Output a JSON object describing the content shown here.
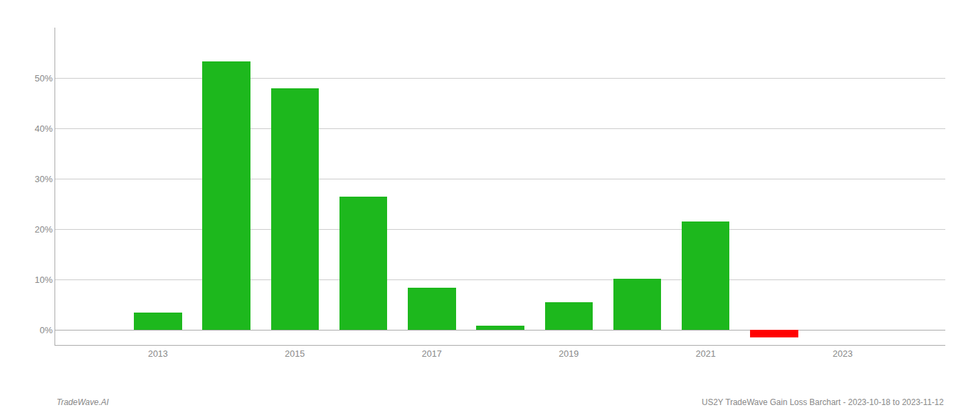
{
  "chart_data": {
    "type": "bar",
    "x": [
      2013,
      2014,
      2015,
      2016,
      2017,
      2018,
      2019,
      2020,
      2021,
      2022
    ],
    "values": [
      0.035,
      0.533,
      0.48,
      0.265,
      0.084,
      0.008,
      0.055,
      0.101,
      0.215,
      -0.015
    ],
    "colors": [
      "#1db81d",
      "#1db81d",
      "#1db81d",
      "#1db81d",
      "#1db81d",
      "#1db81d",
      "#1db81d",
      "#1db81d",
      "#1db81d",
      "#ff0000"
    ],
    "xlim": [
      2011.5,
      2024.5
    ],
    "xticks": [
      2013,
      2015,
      2017,
      2019,
      2021,
      2023
    ],
    "ylim": [
      -0.03,
      0.6
    ],
    "yticks": [
      {
        "value": 0.0,
        "label": "0%"
      },
      {
        "value": 0.1,
        "label": "10%"
      },
      {
        "value": 0.2,
        "label": "20%"
      },
      {
        "value": 0.3,
        "label": "30%"
      },
      {
        "value": 0.4,
        "label": "40%"
      },
      {
        "value": 0.5,
        "label": "50%"
      }
    ],
    "grid": true,
    "annotations": [
      "TradeWave.AI",
      "US2Y TradeWave Gain Loss Barchart - 2023-10-18 to 2023-11-12"
    ]
  }
}
